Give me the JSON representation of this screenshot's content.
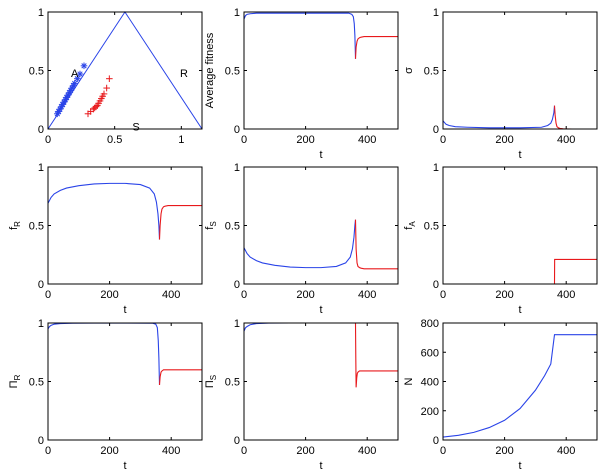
{
  "chart_data": [
    {
      "type": "scatter",
      "subtype": "simplex",
      "xlim": [
        0,
        1.155
      ],
      "ylim": [
        0,
        1
      ],
      "xticks": [
        "0",
        "0.5",
        "1"
      ],
      "yticks": [
        "0",
        "0.5",
        "1"
      ],
      "vertex_labels": [
        "A",
        "R",
        "S"
      ],
      "triangle": {
        "x": [
          0,
          0.577,
          1.155,
          0
        ],
        "y": [
          0,
          1,
          0,
          0
        ],
        "color": "#2a44e8"
      },
      "series": [
        {
          "marker": "*",
          "color": "#2a44e8",
          "x": [
            0.07,
            0.08,
            0.09,
            0.1,
            0.11,
            0.12,
            0.13,
            0.14,
            0.15,
            0.16,
            0.17,
            0.18,
            0.19,
            0.2,
            0.22,
            0.24,
            0.27
          ],
          "y": [
            0.13,
            0.15,
            0.17,
            0.19,
            0.21,
            0.23,
            0.25,
            0.27,
            0.29,
            0.31,
            0.33,
            0.35,
            0.37,
            0.39,
            0.43,
            0.47,
            0.54
          ]
        },
        {
          "marker": "+",
          "color": "#e8191c",
          "x": [
            0.3,
            0.32,
            0.34,
            0.35,
            0.36,
            0.37,
            0.38,
            0.39,
            0.4,
            0.41,
            0.42,
            0.44,
            0.46
          ],
          "y": [
            0.13,
            0.15,
            0.17,
            0.18,
            0.19,
            0.2,
            0.22,
            0.24,
            0.26,
            0.28,
            0.3,
            0.35,
            0.43
          ]
        }
      ]
    },
    {
      "type": "line",
      "xlabel": "t",
      "ylabel": "Average fitness",
      "xlim": [
        0,
        500
      ],
      "ylim": [
        0,
        1
      ],
      "xticks": [
        "0",
        "200",
        "400"
      ],
      "yticks": [
        "0",
        "0.5",
        "1"
      ],
      "series": [
        {
          "color": "#2a44e8",
          "x": [
            0,
            5,
            10,
            20,
            40,
            80,
            150,
            250,
            340,
            350,
            355,
            358,
            360,
            362
          ],
          "y": [
            0.94,
            0.97,
            0.98,
            0.985,
            0.99,
            0.99,
            0.99,
            0.99,
            0.99,
            0.98,
            0.96,
            0.9,
            0.8,
            0.6
          ]
        },
        {
          "color": "#e8191c",
          "x": [
            362,
            364,
            367,
            370,
            375,
            380,
            390,
            400,
            420,
            450,
            500
          ],
          "y": [
            0.6,
            0.7,
            0.75,
            0.77,
            0.78,
            0.785,
            0.79,
            0.79,
            0.79,
            0.79,
            0.79
          ]
        }
      ]
    },
    {
      "type": "line",
      "xlabel": "t",
      "ylabel": "σ",
      "xlim": [
        0,
        500
      ],
      "ylim": [
        0,
        1
      ],
      "xticks": [
        "0",
        "200",
        "400"
      ],
      "yticks": [
        "0",
        "0.5",
        "1"
      ],
      "series": [
        {
          "color": "#2a44e8",
          "x": [
            0,
            10,
            20,
            40,
            80,
            150,
            250,
            320,
            340,
            350,
            355,
            360,
            362
          ],
          "y": [
            0.07,
            0.04,
            0.03,
            0.02,
            0.015,
            0.01,
            0.01,
            0.015,
            0.03,
            0.05,
            0.08,
            0.14,
            0.2
          ]
        },
        {
          "color": "#e8191c",
          "x": [
            362,
            364,
            367,
            370,
            375,
            380,
            390,
            400,
            420,
            450,
            500
          ],
          "y": [
            0.2,
            0.12,
            0.05,
            0.02,
            0.01,
            0.005,
            0.002,
            0.001,
            0,
            0,
            0
          ]
        }
      ]
    },
    {
      "type": "line",
      "xlabel": "t",
      "ylabel": "f_R",
      "xlim": [
        0,
        500
      ],
      "ylim": [
        0,
        1
      ],
      "xticks": [
        "0",
        "200",
        "400"
      ],
      "yticks": [
        "0",
        "0.5",
        "1"
      ],
      "series": [
        {
          "color": "#2a44e8",
          "x": [
            0,
            10,
            20,
            40,
            60,
            100,
            150,
            200,
            250,
            300,
            330,
            345,
            352,
            357,
            360,
            362
          ],
          "y": [
            0.69,
            0.74,
            0.77,
            0.8,
            0.82,
            0.84,
            0.855,
            0.86,
            0.86,
            0.85,
            0.82,
            0.77,
            0.7,
            0.6,
            0.5,
            0.38
          ]
        },
        {
          "color": "#e8191c",
          "x": [
            362,
            364,
            367,
            370,
            375,
            380,
            390,
            400,
            420,
            450,
            500
          ],
          "y": [
            0.38,
            0.5,
            0.6,
            0.64,
            0.66,
            0.665,
            0.67,
            0.67,
            0.67,
            0.67,
            0.67
          ]
        }
      ]
    },
    {
      "type": "line",
      "xlabel": "t",
      "ylabel": "f_S",
      "xlim": [
        0,
        500
      ],
      "ylim": [
        0,
        1
      ],
      "xticks": [
        "0",
        "200",
        "400"
      ],
      "yticks": [
        "0",
        "0.5",
        "1"
      ],
      "series": [
        {
          "color": "#2a44e8",
          "x": [
            0,
            10,
            20,
            40,
            60,
            100,
            150,
            200,
            250,
            300,
            330,
            345,
            352,
            357,
            360,
            362
          ],
          "y": [
            0.31,
            0.26,
            0.23,
            0.2,
            0.18,
            0.16,
            0.145,
            0.14,
            0.14,
            0.15,
            0.18,
            0.23,
            0.3,
            0.4,
            0.5,
            0.55
          ]
        },
        {
          "color": "#e8191c",
          "x": [
            362,
            364,
            367,
            370,
            375,
            380,
            390,
            400,
            420,
            450,
            500
          ],
          "y": [
            0.55,
            0.3,
            0.18,
            0.15,
            0.14,
            0.135,
            0.13,
            0.13,
            0.13,
            0.13,
            0.13
          ]
        }
      ]
    },
    {
      "type": "line",
      "xlabel": "t",
      "ylabel": "f_A",
      "xlim": [
        0,
        500
      ],
      "ylim": [
        0,
        1
      ],
      "xticks": [
        "0",
        "200",
        "400"
      ],
      "yticks": [
        "0",
        "0.5",
        "1"
      ],
      "series": [
        {
          "color": "#2a44e8",
          "x": [
            0,
            100,
            200,
            300,
            362
          ],
          "y": [
            0,
            0,
            0,
            0,
            0
          ]
        },
        {
          "color": "#e8191c",
          "x": [
            362,
            362.5,
            370,
            400,
            450,
            500
          ],
          "y": [
            0,
            0.21,
            0.21,
            0.21,
            0.21,
            0.21
          ]
        }
      ]
    },
    {
      "type": "line",
      "xlabel": "t",
      "ylabel": "Π_R",
      "xlim": [
        0,
        500
      ],
      "ylim": [
        0,
        1
      ],
      "xticks": [
        "0",
        "200",
        "400"
      ],
      "yticks": [
        "0",
        "0.5",
        "1"
      ],
      "series": [
        {
          "color": "#2a44e8",
          "x": [
            0,
            5,
            10,
            20,
            40,
            80,
            150,
            250,
            340,
            350,
            355,
            358,
            360,
            362
          ],
          "y": [
            0.95,
            0.97,
            0.98,
            0.99,
            0.995,
            0.998,
            0.999,
            0.999,
            0.998,
            0.99,
            0.96,
            0.85,
            0.7,
            0.47
          ]
        },
        {
          "color": "#e8191c",
          "x": [
            362,
            364,
            367,
            370,
            375,
            380,
            390,
            400,
            420,
            450,
            500
          ],
          "y": [
            0.47,
            0.54,
            0.58,
            0.59,
            0.6,
            0.6,
            0.6,
            0.6,
            0.6,
            0.6,
            0.6
          ]
        }
      ]
    },
    {
      "type": "line",
      "xlabel": "t",
      "ylabel": "Π_S",
      "xlim": [
        0,
        500
      ],
      "ylim": [
        0,
        1
      ],
      "xticks": [
        "0",
        "200",
        "400"
      ],
      "yticks": [
        "0",
        "0.5",
        "1"
      ],
      "series": [
        {
          "color": "#2a44e8",
          "x": [
            0,
            5,
            10,
            20,
            40,
            80,
            150,
            250,
            340,
            355,
            362
          ],
          "y": [
            0.93,
            0.96,
            0.97,
            0.985,
            0.995,
            0.999,
            1.0,
            1.0,
            1.0,
            1.0,
            1.0
          ]
        },
        {
          "color": "#e8191c",
          "x": [
            362,
            363,
            364,
            366,
            368,
            370,
            375,
            380,
            390,
            400,
            420,
            450,
            500
          ],
          "y": [
            1.0,
            0.7,
            0.45,
            0.53,
            0.57,
            0.58,
            0.59,
            0.59,
            0.59,
            0.59,
            0.59,
            0.59,
            0.59
          ]
        }
      ]
    },
    {
      "type": "line",
      "xlabel": "t",
      "ylabel": "N",
      "xlim": [
        0,
        500
      ],
      "ylim": [
        0,
        800
      ],
      "xticks": [
        "0",
        "200",
        "400"
      ],
      "yticks": [
        "0",
        "200",
        "400",
        "600",
        "800"
      ],
      "series": [
        {
          "color": "#2a44e8",
          "x": [
            0,
            50,
            100,
            150,
            200,
            250,
            300,
            330,
            350,
            362,
            380,
            420,
            460,
            500
          ],
          "y": [
            20,
            32,
            52,
            85,
            135,
            215,
            340,
            440,
            520,
            720,
            720,
            720,
            720,
            720
          ]
        }
      ]
    }
  ]
}
